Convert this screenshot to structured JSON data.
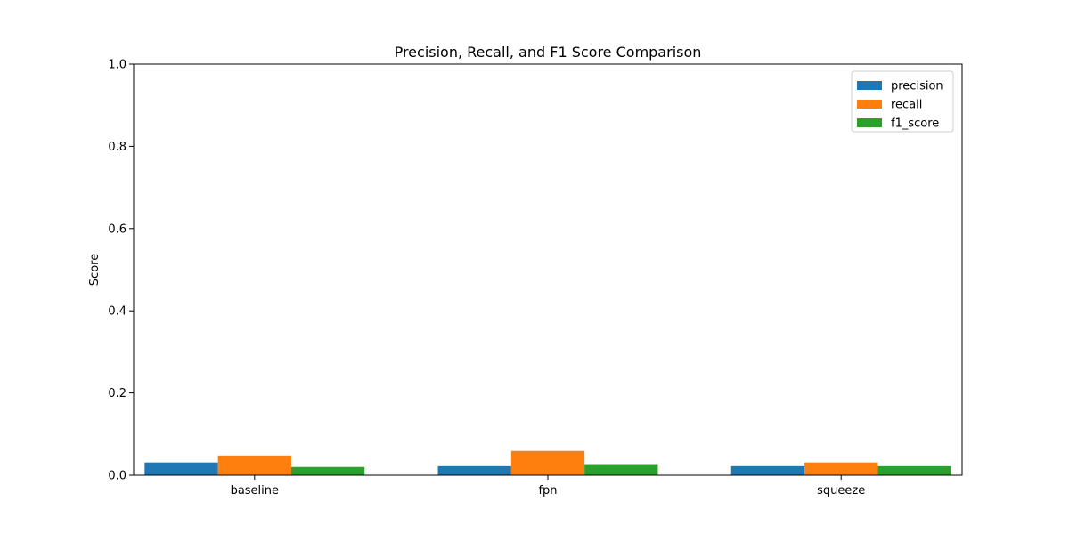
{
  "chart_data": {
    "type": "bar",
    "title": "Precision, Recall, and F1 Score Comparison",
    "xlabel": "",
    "ylabel": "Score",
    "ylim": [
      0,
      1.0
    ],
    "yticks": [
      "0.0",
      "0.2",
      "0.4",
      "0.6",
      "0.8",
      "1.0"
    ],
    "categories": [
      "baseline",
      "fpn",
      "squeeze"
    ],
    "series": [
      {
        "name": "precision",
        "color": "#1f77b4",
        "values": [
          0.031,
          0.022,
          0.022
        ]
      },
      {
        "name": "recall",
        "color": "#ff7f0e",
        "values": [
          0.048,
          0.059,
          0.031
        ]
      },
      {
        "name": "f1_score",
        "color": "#2ca02c",
        "values": [
          0.02,
          0.027,
          0.022
        ]
      }
    ],
    "legend_position": "top-right",
    "grid": false
  }
}
